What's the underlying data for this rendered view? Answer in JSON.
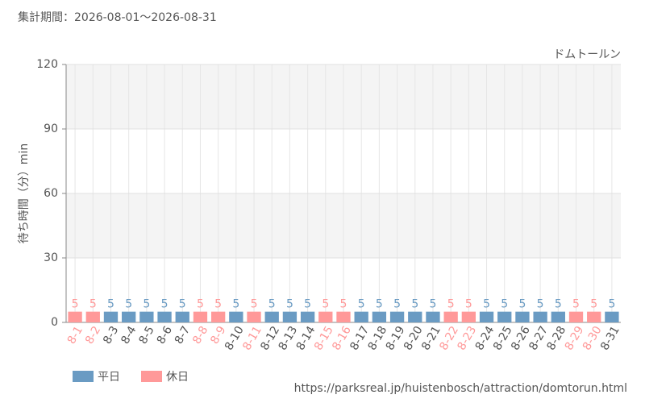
{
  "chart_data": {
    "type": "bar",
    "title": "集計期間：2026-08-01～2026-08-31",
    "subtitle": "ドムトールン",
    "y_label": "待ち時間（分）min",
    "categories": [
      "8-1",
      "8-2",
      "8-3",
      "8-4",
      "8-5",
      "8-6",
      "8-7",
      "8-8",
      "8-9",
      "8-10",
      "8-11",
      "8-12",
      "8-13",
      "8-14",
      "8-15",
      "8-16",
      "8-17",
      "8-18",
      "8-19",
      "8-20",
      "8-21",
      "8-22",
      "8-23",
      "8-24",
      "8-25",
      "8-26",
      "8-27",
      "8-28",
      "8-29",
      "8-30",
      "8-31"
    ],
    "series": [
      {
        "name": "平日",
        "color": "#6a9bc3",
        "values": [
          null,
          null,
          5,
          5,
          5,
          5,
          5,
          null,
          null,
          5,
          null,
          5,
          5,
          5,
          null,
          null,
          5,
          5,
          5,
          5,
          5,
          null,
          null,
          5,
          5,
          5,
          5,
          5,
          null,
          null,
          5
        ]
      },
      {
        "name": "休日",
        "color": "#ff9999",
        "values": [
          5,
          5,
          null,
          null,
          null,
          null,
          null,
          5,
          5,
          null,
          5,
          null,
          null,
          null,
          5,
          5,
          null,
          null,
          null,
          null,
          null,
          5,
          5,
          null,
          null,
          null,
          null,
          null,
          5,
          5,
          null
        ]
      }
    ],
    "ylim": [
      0,
      120
    ],
    "yticks": [
      0,
      30,
      60,
      90,
      120
    ],
    "grid": true,
    "legend": "bottom-left",
    "source": "https://parksreal.jp/huistenbosch/attraction/domtorun.html"
  }
}
